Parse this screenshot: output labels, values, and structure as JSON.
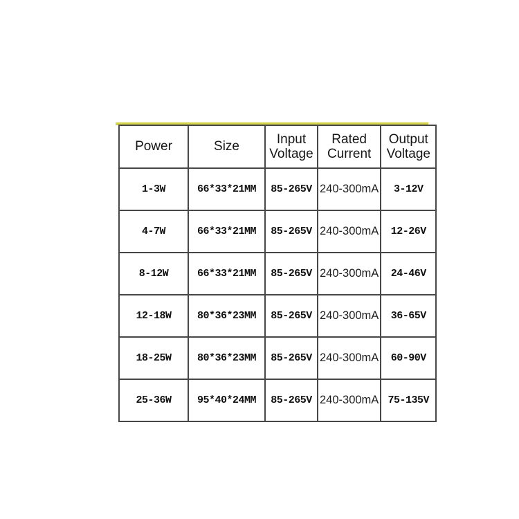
{
  "accent_strip_color": "#d6d64f",
  "table_border_color": "#474747",
  "chart_data": {
    "type": "table",
    "columns": [
      "Power",
      "Size",
      "Input Voltage",
      "Rated Current",
      "Output Voltage"
    ],
    "rows": [
      [
        "1-3W",
        "66*33*21MM",
        "85-265V",
        "240-300mA",
        "3-12V"
      ],
      [
        "4-7W",
        "66*33*21MM",
        "85-265V",
        "240-300mA",
        "12-26V"
      ],
      [
        "8-12W",
        "66*33*21MM",
        "85-265V",
        "240-300mA",
        "24-46V"
      ],
      [
        "12-18W",
        "80*36*23MM",
        "85-265V",
        "240-300mA",
        "36-65V"
      ],
      [
        "18-25W",
        "80*36*23MM",
        "85-265V",
        "240-300mA",
        "60-90V"
      ],
      [
        "25-36W",
        "95*40*24MM",
        "85-265V",
        "240-300mA",
        "75-135V"
      ]
    ]
  }
}
